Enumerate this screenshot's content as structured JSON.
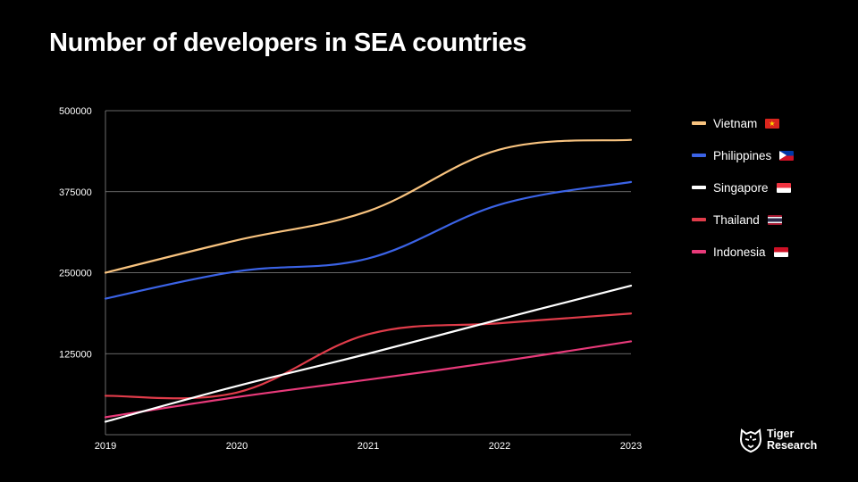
{
  "page": {
    "title": "Number of developers in SEA countries"
  },
  "chart_data": {
    "type": "line",
    "x": [
      "2019",
      "2020",
      "2021",
      "2022",
      "2023"
    ],
    "yticks": [
      "500000",
      "375000",
      "250000",
      "125000"
    ],
    "ylim": [
      0,
      500000
    ],
    "grid": true,
    "legend_position": "right",
    "series": [
      {
        "name": "Vietnam",
        "color": "#f8c37f",
        "flag": "flag-vietnam",
        "values": [
          250000,
          300000,
          345000,
          440000,
          455000
        ]
      },
      {
        "name": "Philippines",
        "color": "#3b63e6",
        "flag": "flag-philippines",
        "values": [
          210000,
          252000,
          272000,
          355000,
          390000
        ]
      },
      {
        "name": "Singapore",
        "color": "#ffffff",
        "flag": "flag-singapore",
        "values": [
          20000,
          75000,
          125000,
          178000,
          230000
        ]
      },
      {
        "name": "Thailand",
        "color": "#e03c4a",
        "flag": "flag-thailand",
        "values": [
          60000,
          65000,
          155000,
          172000,
          187000
        ]
      },
      {
        "name": "Indonesia",
        "color": "#e83a7a",
        "flag": "flag-indonesia",
        "values": [
          27000,
          58000,
          85000,
          113000,
          144000
        ]
      }
    ]
  },
  "logo": {
    "line1": "Tiger",
    "line2": "Research"
  }
}
